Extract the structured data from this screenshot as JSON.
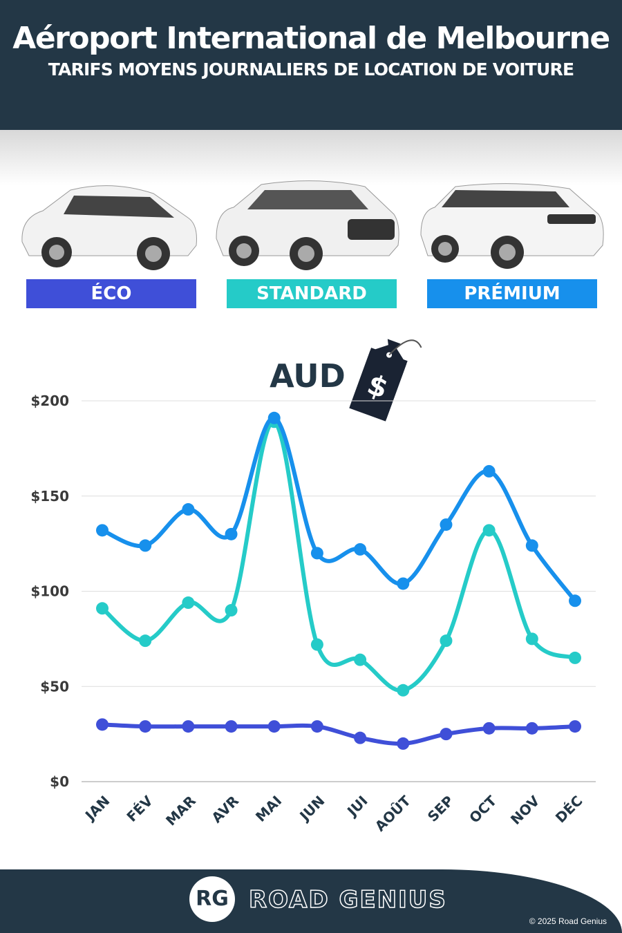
{
  "header": {
    "title": "Aéroport International de Melbourne",
    "subtitle": "TARIFS MOYENS JOURNALIERS DE LOCATION DE VOITURE"
  },
  "categories_labels": [
    "ÉCO",
    "STANDARD",
    "PRÉMIUM"
  ],
  "currency": "AUD",
  "price_tag_symbol": "$",
  "colors": {
    "eco": "#3f4fd8",
    "standard": "#25cbc8",
    "premium": "#1790ec",
    "header": "#233746"
  },
  "footer": {
    "logo_initials": "RG",
    "brand": "ROAD GENIUS",
    "copyright": "© 2025 Road Genius"
  },
  "chart_data": {
    "type": "line",
    "title": "AUD",
    "categories": [
      "JAN",
      "FÉV",
      "MAR",
      "AVR",
      "MAI",
      "JUN",
      "JUI",
      "AOÛT",
      "SEP",
      "OCT",
      "NOV",
      "DÉC"
    ],
    "yticks": [
      "$0",
      "$50",
      "$100",
      "$150",
      "$200"
    ],
    "ylim": [
      0,
      200
    ],
    "grid": true,
    "series": [
      {
        "name": "PRÉMIUM",
        "color": "#1790ec",
        "values": [
          132,
          124,
          143,
          130,
          191,
          120,
          122,
          104,
          135,
          163,
          124,
          95
        ]
      },
      {
        "name": "STANDARD",
        "color": "#25cbc8",
        "values": [
          91,
          74,
          94,
          90,
          189,
          72,
          64,
          48,
          74,
          132,
          75,
          65
        ]
      },
      {
        "name": "ÉCO",
        "color": "#3f4fd8",
        "values": [
          30,
          29,
          29,
          29,
          29,
          29,
          23,
          20,
          25,
          28,
          28,
          29
        ]
      }
    ]
  }
}
